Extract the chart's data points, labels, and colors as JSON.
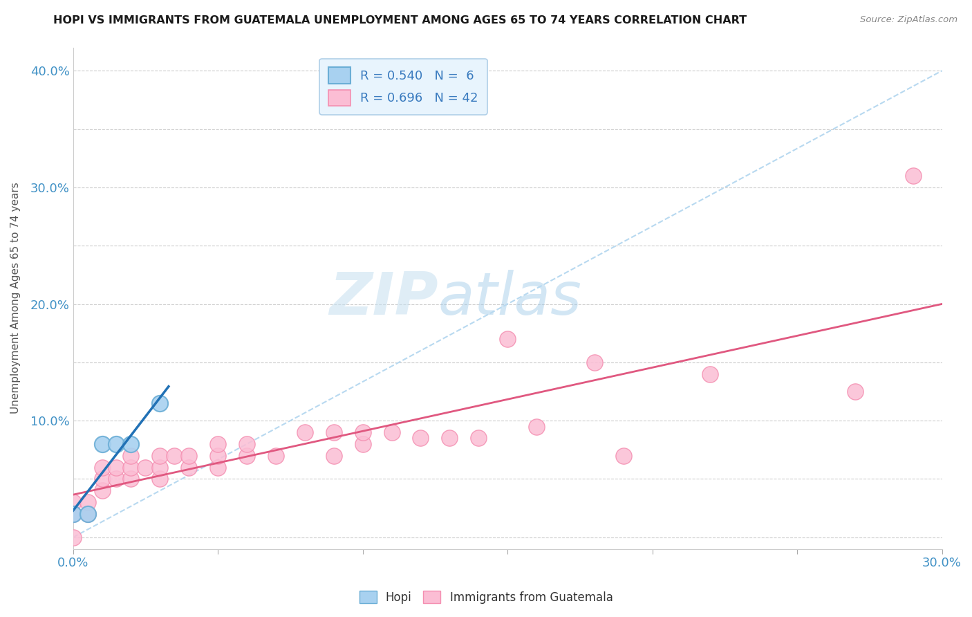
{
  "title": "HOPI VS IMMIGRANTS FROM GUATEMALA UNEMPLOYMENT AMONG AGES 65 TO 74 YEARS CORRELATION CHART",
  "source": "Source: ZipAtlas.com",
  "ylabel": "Unemployment Among Ages 65 to 74 years",
  "xlim": [
    0.0,
    0.3
  ],
  "ylim": [
    -0.01,
    0.42
  ],
  "x_ticks": [
    0.0,
    0.05,
    0.1,
    0.15,
    0.2,
    0.25,
    0.3
  ],
  "y_ticks": [
    0.0,
    0.05,
    0.1,
    0.15,
    0.2,
    0.25,
    0.3,
    0.35,
    0.4
  ],
  "hopi_color": "#6baed6",
  "hopi_fill": "#a8d1f0",
  "guatemala_color": "#f48fb1",
  "guatemala_fill": "#fbbdd4",
  "hopi_R": 0.54,
  "hopi_N": 6,
  "guatemala_R": 0.696,
  "guatemala_N": 42,
  "hopi_points": [
    [
      0.0,
      0.02
    ],
    [
      0.005,
      0.02
    ],
    [
      0.01,
      0.08
    ],
    [
      0.015,
      0.08
    ],
    [
      0.02,
      0.08
    ],
    [
      0.03,
      0.115
    ]
  ],
  "guatemala_points": [
    [
      0.0,
      0.0
    ],
    [
      0.0,
      0.02
    ],
    [
      0.0,
      0.03
    ],
    [
      0.005,
      0.02
    ],
    [
      0.005,
      0.03
    ],
    [
      0.01,
      0.04
    ],
    [
      0.01,
      0.05
    ],
    [
      0.01,
      0.06
    ],
    [
      0.015,
      0.05
    ],
    [
      0.015,
      0.06
    ],
    [
      0.02,
      0.05
    ],
    [
      0.02,
      0.06
    ],
    [
      0.02,
      0.07
    ],
    [
      0.025,
      0.06
    ],
    [
      0.03,
      0.05
    ],
    [
      0.03,
      0.06
    ],
    [
      0.03,
      0.07
    ],
    [
      0.035,
      0.07
    ],
    [
      0.04,
      0.06
    ],
    [
      0.04,
      0.07
    ],
    [
      0.05,
      0.06
    ],
    [
      0.05,
      0.07
    ],
    [
      0.05,
      0.08
    ],
    [
      0.06,
      0.07
    ],
    [
      0.06,
      0.08
    ],
    [
      0.07,
      0.07
    ],
    [
      0.08,
      0.09
    ],
    [
      0.09,
      0.07
    ],
    [
      0.09,
      0.09
    ],
    [
      0.1,
      0.08
    ],
    [
      0.1,
      0.09
    ],
    [
      0.11,
      0.09
    ],
    [
      0.12,
      0.085
    ],
    [
      0.13,
      0.085
    ],
    [
      0.14,
      0.085
    ],
    [
      0.15,
      0.17
    ],
    [
      0.16,
      0.095
    ],
    [
      0.18,
      0.15
    ],
    [
      0.19,
      0.07
    ],
    [
      0.22,
      0.14
    ],
    [
      0.27,
      0.125
    ],
    [
      0.29,
      0.31
    ]
  ],
  "hopi_line_color": "#2171b5",
  "guatemala_line_color": "#e05880",
  "ref_line_color": "#b8d9f0",
  "watermark_zip": "ZIP",
  "watermark_atlas": "atlas",
  "background_color": "#ffffff",
  "grid_color": "#cccccc",
  "legend_box_color": "#e8f4fd",
  "legend_border_color": "#b0cfe8"
}
